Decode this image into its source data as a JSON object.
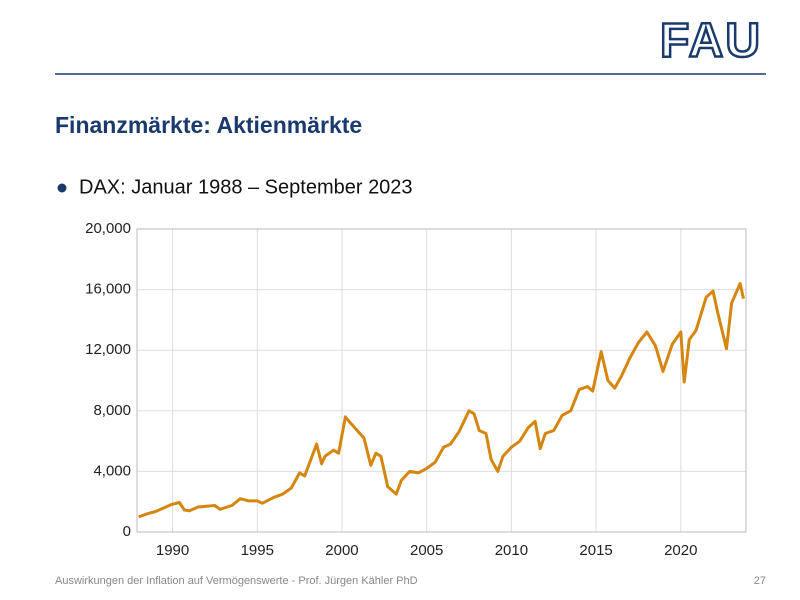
{
  "logo": "FAU",
  "slide_title": "Finanzmärkte: Aktienmärkte",
  "bullet": "DAX: Januar 1988 – September 2023",
  "footer": "Auswirkungen der Inflation auf Vermögenswerte  -  Prof. Jürgen Kähler PhD",
  "page_number": "27",
  "chart_data": {
    "type": "line",
    "x": [
      1988.0,
      1988.5,
      1989.0,
      1989.5,
      1989.9,
      1990.4,
      1990.7,
      1991.0,
      1991.5,
      1992.0,
      1992.5,
      1992.8,
      1993.5,
      1994.0,
      1994.5,
      1995.0,
      1995.3,
      1996.0,
      1996.5,
      1997.0,
      1997.5,
      1997.8,
      1998.5,
      1998.8,
      1999.0,
      1999.5,
      1999.8,
      2000.2,
      2000.5,
      2000.9,
      2001.3,
      2001.7,
      2002.0,
      2002.3,
      2002.7,
      2003.2,
      2003.5,
      2004.0,
      2004.5,
      2005.0,
      2005.5,
      2006.0,
      2006.4,
      2006.9,
      2007.5,
      2007.8,
      2008.1,
      2008.5,
      2008.8,
      2009.2,
      2009.5,
      2010.0,
      2010.5,
      2011.0,
      2011.4,
      2011.7,
      2012.0,
      2012.5,
      2013.0,
      2013.5,
      2014.0,
      2014.5,
      2014.8,
      2015.3,
      2015.7,
      2016.1,
      2016.5,
      2017.0,
      2017.5,
      2018.0,
      2018.5,
      2018.95,
      2019.5,
      2020.0,
      2020.2,
      2020.5,
      2020.9,
      2021.5,
      2021.9,
      2022.2,
      2022.7,
      2023.0,
      2023.5,
      2023.7
    ],
    "series": [
      {
        "name": "DAX",
        "color": "#d4860f",
        "values": [
          1000,
          1200,
          1350,
          1600,
          1800,
          1950,
          1450,
          1400,
          1650,
          1700,
          1750,
          1500,
          1750,
          2200,
          2050,
          2050,
          1900,
          2300,
          2500,
          2900,
          3900,
          3700,
          5800,
          4500,
          5000,
          5400,
          5200,
          7600,
          7200,
          6700,
          6200,
          4400,
          5200,
          5000,
          3000,
          2500,
          3400,
          4000,
          3900,
          4200,
          4600,
          5600,
          5800,
          6600,
          8000,
          7800,
          6700,
          6500,
          4800,
          4000,
          5000,
          5600,
          6000,
          6900,
          7300,
          5500,
          6500,
          6700,
          7700,
          8000,
          9400,
          9600,
          9300,
          11900,
          10000,
          9500,
          10300,
          11500,
          12500,
          13200,
          12300,
          10600,
          12400,
          13200,
          9900,
          12700,
          13300,
          15500,
          15900,
          14400,
          12100,
          15100,
          16400,
          15400
        ]
      }
    ],
    "xlim": [
      1987.9,
      2023.85
    ],
    "xticks": [
      1990,
      1995,
      2000,
      2005,
      2010,
      2015,
      2020
    ],
    "ylim": [
      0,
      20000
    ],
    "yticks": [
      0,
      {
        "value": 4000,
        "label": "4,000"
      },
      {
        "value": 8000,
        "label": "8,000"
      },
      {
        "value": 12000,
        "label": "12,000"
      },
      {
        "value": 16000,
        "label": "16,000"
      },
      {
        "value": 20000,
        "label": "20,000"
      }
    ],
    "grid": true
  }
}
